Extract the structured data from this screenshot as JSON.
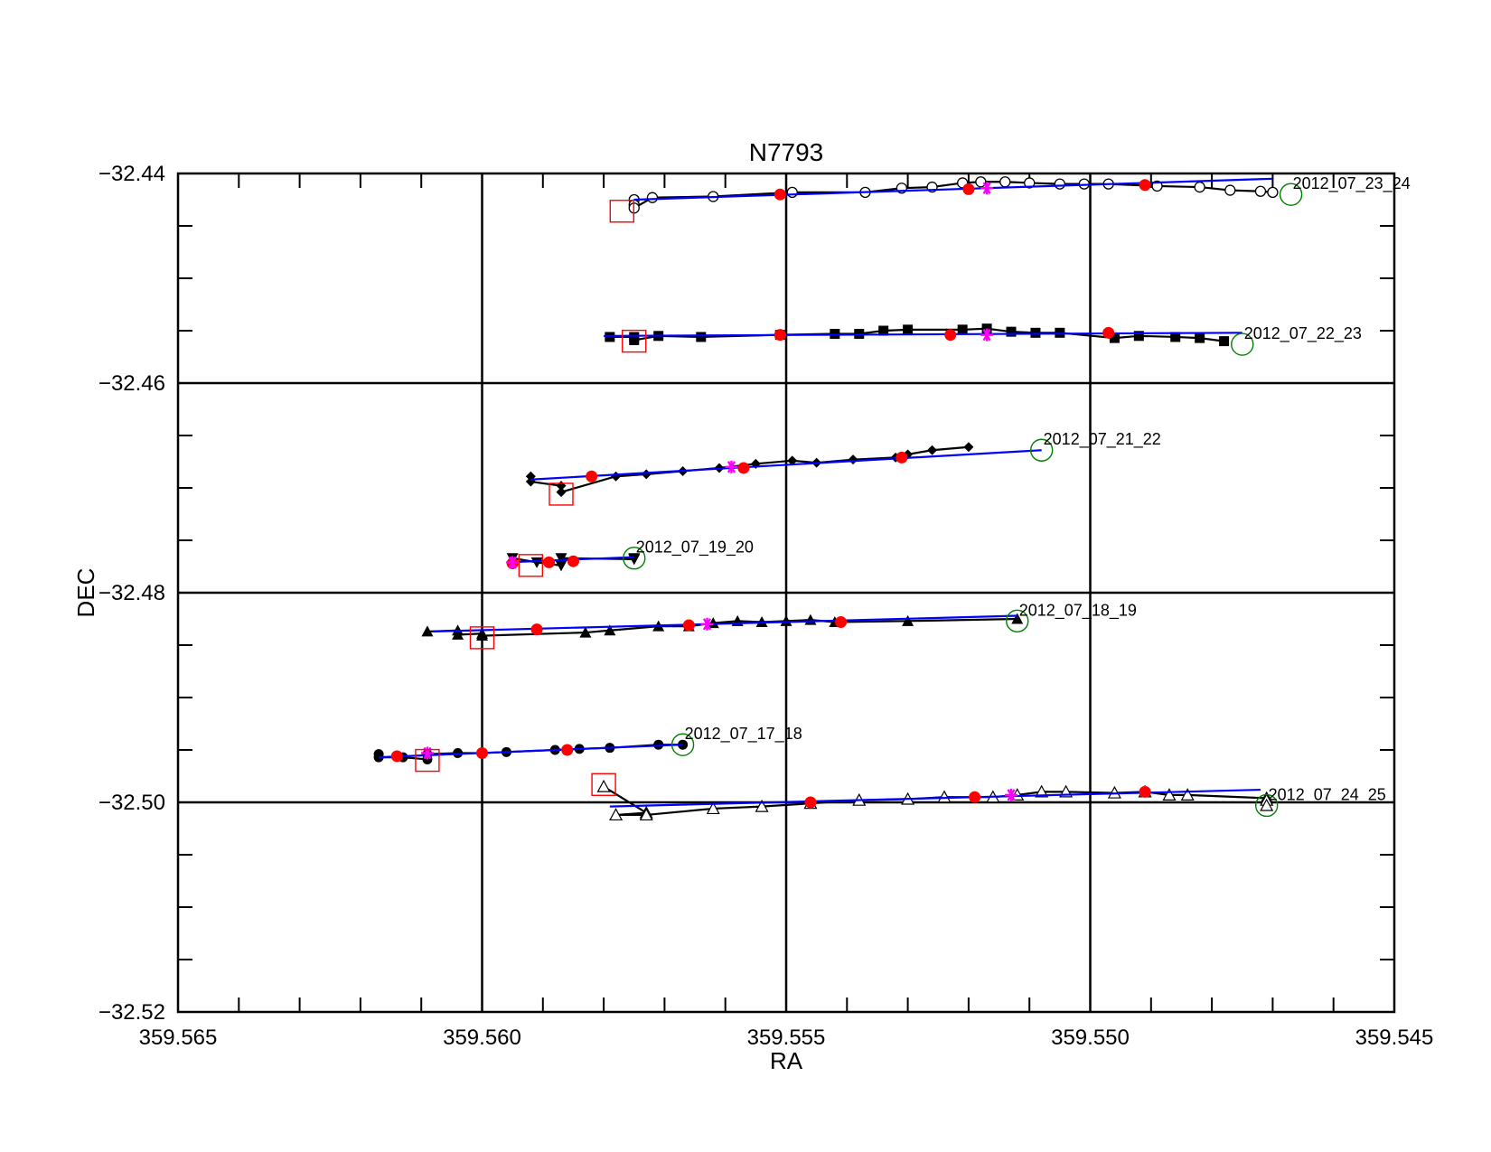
{
  "chart_data": {
    "type": "scatter",
    "title": "N7793",
    "xlabel": "RA",
    "ylabel": "DEC",
    "xlim": [
      359.565,
      359.545
    ],
    "ylim": [
      -32.52,
      -32.44
    ],
    "x_reversed": true,
    "grid": true,
    "x_ticks": [
      359.565,
      359.56,
      359.555,
      359.55,
      359.545
    ],
    "x_tick_labels": [
      "359.565",
      "359.560",
      "359.555",
      "359.550",
      "359.545"
    ],
    "y_ticks": [
      -32.44,
      -32.46,
      -32.48,
      -32.5,
      -32.52
    ],
    "y_tick_labels": [
      "−32.44",
      "−32.46",
      "−32.48",
      "−32.50",
      "−32.52"
    ],
    "colors": {
      "track": "#000000",
      "fit": "#0000ff",
      "fit_point": "#ff0000",
      "mid_marker": "#ff00ff",
      "start_box": "#ff0000",
      "end_circle": "#008000"
    },
    "series": [
      {
        "name": "2012_07_23_24",
        "marker": "open-circle",
        "points": [
          [
            359.5575,
            -32.4425
          ],
          [
            359.5575,
            -32.443
          ],
          [
            359.5575,
            -32.4433
          ],
          [
            359.5572,
            -32.4423
          ],
          [
            359.5562,
            -32.4422
          ],
          [
            359.5549,
            -32.4418
          ],
          [
            359.5537,
            -32.4418
          ],
          [
            359.5531,
            -32.4414
          ],
          [
            359.5526,
            -32.4413
          ],
          [
            359.5521,
            -32.4409
          ],
          [
            359.5518,
            -32.4408
          ],
          [
            359.5514,
            -32.4408
          ],
          [
            359.551,
            -32.4409
          ],
          [
            359.5505,
            -32.441
          ],
          [
            359.5501,
            -32.441
          ],
          [
            359.5497,
            -32.441
          ],
          [
            359.5489,
            -32.4412
          ],
          [
            359.5482,
            -32.4413
          ],
          [
            359.5477,
            -32.4416
          ],
          [
            359.5472,
            -32.4417
          ],
          [
            359.547,
            -32.4418
          ]
        ],
        "fit": [
          [
            359.5575,
            -32.4425
          ],
          [
            359.547,
            -32.4405
          ]
        ],
        "fit_points": [
          [
            359.5551,
            -32.442
          ],
          [
            359.552,
            -32.4415
          ],
          [
            359.5491,
            -32.4411
          ]
        ],
        "mid_marker": [
          359.5517,
          -32.4414
        ],
        "start_box": [
          359.5577,
          -32.4436
        ],
        "end_circle": [
          359.5467,
          -32.442
        ]
      },
      {
        "name": "2012_07_22_23",
        "marker": "filled-square",
        "points": [
          [
            359.5579,
            -32.4556
          ],
          [
            359.5575,
            -32.4556
          ],
          [
            359.5575,
            -32.4559
          ],
          [
            359.5571,
            -32.4555
          ],
          [
            359.5564,
            -32.4556
          ],
          [
            359.5551,
            -32.4554
          ],
          [
            359.5542,
            -32.4553
          ],
          [
            359.5538,
            -32.4553
          ],
          [
            359.5534,
            -32.455
          ],
          [
            359.553,
            -32.4549
          ],
          [
            359.5521,
            -32.4549
          ],
          [
            359.5517,
            -32.4548
          ],
          [
            359.5513,
            -32.4551
          ],
          [
            359.5509,
            -32.4552
          ],
          [
            359.5505,
            -32.4552
          ],
          [
            359.5496,
            -32.4557
          ],
          [
            359.5492,
            -32.4555
          ],
          [
            359.5486,
            -32.4556
          ],
          [
            359.5482,
            -32.4557
          ],
          [
            359.5478,
            -32.456
          ]
        ],
        "fit": [
          [
            359.558,
            -32.4555
          ],
          [
            359.5475,
            -32.4552
          ]
        ],
        "fit_points": [
          [
            359.5551,
            -32.4554
          ],
          [
            359.5523,
            -32.4554
          ],
          [
            359.5497,
            -32.4552
          ]
        ],
        "mid_marker": [
          359.5517,
          -32.4554
        ],
        "start_box": [
          359.5575,
          -32.456
        ],
        "end_circle": [
          359.5475,
          -32.4563
        ]
      },
      {
        "name": "2012_07_21_22",
        "marker": "filled-diamond",
        "points": [
          [
            359.5592,
            -32.4689
          ],
          [
            359.5592,
            -32.4694
          ],
          [
            359.5587,
            -32.4698
          ],
          [
            359.5587,
            -32.4704
          ],
          [
            359.5578,
            -32.4689
          ],
          [
            359.5573,
            -32.4687
          ],
          [
            359.5567,
            -32.4684
          ],
          [
            359.5561,
            -32.4681
          ],
          [
            359.5555,
            -32.4677
          ],
          [
            359.5549,
            -32.4674
          ],
          [
            359.5545,
            -32.4676
          ],
          [
            359.5539,
            -32.4673
          ],
          [
            359.5532,
            -32.4671
          ],
          [
            359.553,
            -32.4668
          ],
          [
            359.5526,
            -32.4664
          ],
          [
            359.552,
            -32.4661
          ]
        ],
        "fit": [
          [
            359.5592,
            -32.4692
          ],
          [
            359.5508,
            -32.4664
          ]
        ],
        "fit_points": [
          [
            359.5582,
            -32.4689
          ],
          [
            359.5557,
            -32.4681
          ],
          [
            359.5531,
            -32.4671
          ]
        ],
        "mid_marker": [
          359.5559,
          -32.468
        ],
        "start_box": [
          359.5587,
          -32.4706
        ],
        "end_circle": [
          359.5508,
          -32.4664
        ]
      },
      {
        "name": "2012_07_19_20",
        "marker": "filled-down-triangle",
        "points": [
          [
            359.5595,
            -32.4767
          ],
          [
            359.5591,
            -32.4771
          ],
          [
            359.5587,
            -32.4774
          ],
          [
            359.5587,
            -32.4767
          ],
          [
            359.5575,
            -32.4768
          ],
          [
            359.5575,
            -32.4767
          ]
        ],
        "fit": [
          [
            359.5596,
            -32.4771
          ],
          [
            359.5575,
            -32.4766
          ]
        ],
        "fit_points": [
          [
            359.5595,
            -32.4772
          ],
          [
            359.5589,
            -32.4771
          ],
          [
            359.5585,
            -32.477
          ]
        ],
        "mid_marker": [
          359.5595,
          -32.4771
        ],
        "start_box": [
          359.5592,
          -32.4774
        ],
        "end_circle": [
          359.5575,
          -32.4767
        ]
      },
      {
        "name": "2012_07_18_19",
        "marker": "filled-up-triangle",
        "points": [
          [
            359.5609,
            -32.4837
          ],
          [
            359.5604,
            -32.4836
          ],
          [
            359.5604,
            -32.484
          ],
          [
            359.56,
            -32.4839
          ],
          [
            359.56,
            -32.4841
          ],
          [
            359.5583,
            -32.4838
          ],
          [
            359.5579,
            -32.4836
          ],
          [
            359.5571,
            -32.4832
          ],
          [
            359.5566,
            -32.4832
          ],
          [
            359.5562,
            -32.4829
          ],
          [
            359.5558,
            -32.4827
          ],
          [
            359.5554,
            -32.4828
          ],
          [
            359.555,
            -32.4827
          ],
          [
            359.5546,
            -32.4826
          ],
          [
            359.5542,
            -32.4828
          ],
          [
            359.553,
            -32.4827
          ],
          [
            359.5512,
            -32.4825
          ]
        ],
        "fit": [
          [
            359.5608,
            -32.4837
          ],
          [
            359.5512,
            -32.4822
          ]
        ],
        "fit_points": [
          [
            359.5591,
            -32.4835
          ],
          [
            359.5566,
            -32.4831
          ],
          [
            359.5541,
            -32.4828
          ]
        ],
        "mid_marker": [
          359.5563,
          -32.483
        ],
        "start_box": [
          359.56,
          -32.4843
        ],
        "end_circle": [
          359.5512,
          -32.4827
        ]
      },
      {
        "name": "2012_07_17_18",
        "marker": "filled-circle",
        "points": [
          [
            359.5617,
            -32.4954
          ],
          [
            359.5617,
            -32.4957
          ],
          [
            359.5613,
            -32.4957
          ],
          [
            359.5609,
            -32.4959
          ],
          [
            359.5609,
            -32.4954
          ],
          [
            359.5604,
            -32.4953
          ],
          [
            359.56,
            -32.4953
          ],
          [
            359.5596,
            -32.4952
          ],
          [
            359.5588,
            -32.495
          ],
          [
            359.5584,
            -32.4949
          ],
          [
            359.5579,
            -32.4948
          ],
          [
            359.5571,
            -32.4945
          ],
          [
            359.5567,
            -32.4945
          ]
        ],
        "fit": [
          [
            359.5617,
            -32.4957
          ],
          [
            359.5567,
            -32.4945
          ]
        ],
        "fit_points": [
          [
            359.5614,
            -32.4956
          ],
          [
            359.56,
            -32.4953
          ],
          [
            359.5586,
            -32.495
          ]
        ],
        "mid_marker": [
          359.5609,
          -32.4953
        ],
        "start_box": [
          359.5609,
          -32.496
        ],
        "end_circle": [
          359.5567,
          -32.4945
        ]
      },
      {
        "name": "2012_07_24_25",
        "marker": "open-triangle",
        "points": [
          [
            359.558,
            -32.4985
          ],
          [
            359.5573,
            -32.501
          ],
          [
            359.5578,
            -32.5012
          ],
          [
            359.5573,
            -32.5012
          ],
          [
            359.5562,
            -32.5006
          ],
          [
            359.5554,
            -32.5004
          ],
          [
            359.5546,
            -32.5001
          ],
          [
            359.5538,
            -32.4998
          ],
          [
            359.553,
            -32.4997
          ],
          [
            359.5524,
            -32.4995
          ],
          [
            359.5516,
            -32.4995
          ],
          [
            359.5512,
            -32.4993
          ],
          [
            359.5508,
            -32.499
          ],
          [
            359.5504,
            -32.499
          ],
          [
            359.5496,
            -32.4991
          ],
          [
            359.5491,
            -32.499
          ],
          [
            359.5487,
            -32.4993
          ],
          [
            359.5484,
            -32.4993
          ],
          [
            359.5471,
            -32.4996
          ],
          [
            359.5471,
            -32.4998
          ],
          [
            359.5471,
            -32.5003
          ]
        ],
        "fit": [
          [
            359.5579,
            -32.5004
          ],
          [
            359.5472,
            -32.4988
          ]
        ],
        "fit_points": [
          [
            359.5546,
            -32.5
          ],
          [
            359.5519,
            -32.4995
          ],
          [
            359.5491,
            -32.499
          ]
        ],
        "mid_marker": [
          359.5513,
          -32.4993
        ],
        "start_box": [
          359.558,
          -32.4983
        ],
        "end_circle": [
          359.5471,
          -32.5003
        ]
      }
    ]
  }
}
